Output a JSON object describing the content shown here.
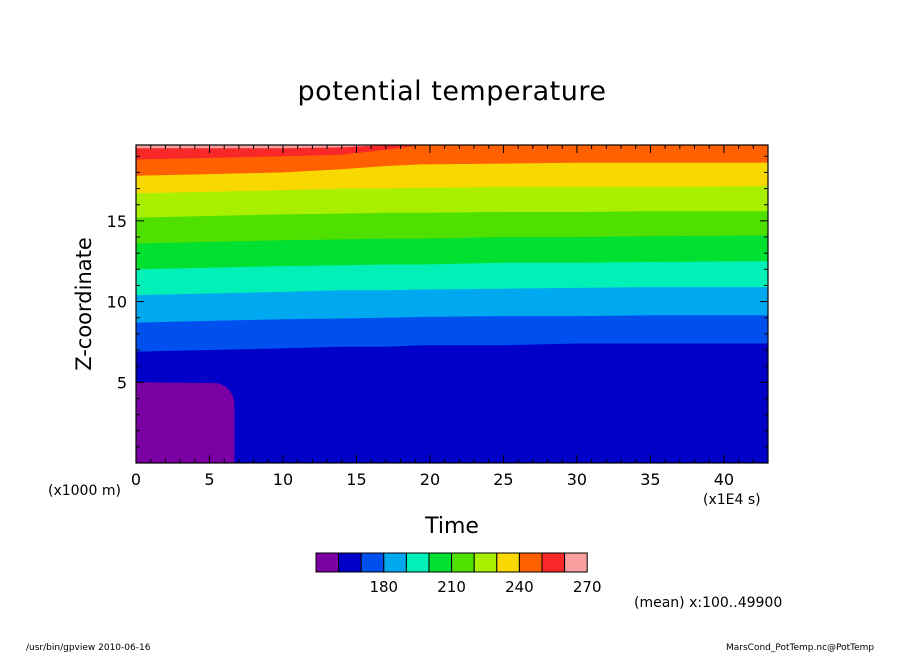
{
  "chart_data": {
    "type": "heatmap",
    "title": "potential temperature",
    "xlabel": "Time",
    "ylabel": "Z-coordinate",
    "x_units": "(x1E4 s)",
    "y_units": "(x1000 m)",
    "xlim": [
      0,
      43
    ],
    "ylim": [
      0,
      19.7
    ],
    "x_ticks": [
      0,
      5,
      10,
      15,
      20,
      25,
      30,
      35,
      40
    ],
    "y_ticks": [
      5,
      10,
      15
    ],
    "contour_levels": [
      160,
      170,
      180,
      190,
      200,
      210,
      220,
      230,
      240,
      250,
      260,
      270
    ],
    "colorbar_labels": [
      180,
      210,
      240,
      270
    ],
    "band_colors": [
      "#7a00a4",
      "#0000c8",
      "#0050f0",
      "#00a8f0",
      "#00f0b8",
      "#00e030",
      "#50e000",
      "#a8f000",
      "#f8d800",
      "#ff6000",
      "#f82828",
      "#f8a0a0"
    ],
    "boundary_x": [
      0,
      5,
      10,
      14,
      17,
      19.5,
      25,
      30,
      35,
      43
    ],
    "boundaries_z": [
      [
        5.0,
        5.0,
        null,
        null,
        null,
        null,
        null,
        null,
        null,
        null
      ],
      [
        6.9,
        7.0,
        7.1,
        7.2,
        7.2,
        7.3,
        7.3,
        7.4,
        7.4,
        7.4
      ],
      [
        8.7,
        8.8,
        8.9,
        8.95,
        9.0,
        9.05,
        9.1,
        9.1,
        9.15,
        9.15
      ],
      [
        10.4,
        10.5,
        10.6,
        10.7,
        10.7,
        10.75,
        10.8,
        10.85,
        10.9,
        10.9
      ],
      [
        12.0,
        12.1,
        12.2,
        12.25,
        12.3,
        12.3,
        12.4,
        12.4,
        12.45,
        12.5
      ],
      [
        13.6,
        13.7,
        13.8,
        13.85,
        13.9,
        13.9,
        14.0,
        14.0,
        14.05,
        14.1
      ],
      [
        15.2,
        15.3,
        15.4,
        15.45,
        15.5,
        15.5,
        15.55,
        15.55,
        15.6,
        15.6
      ],
      [
        16.7,
        16.8,
        16.9,
        17.0,
        17.0,
        17.05,
        17.1,
        17.1,
        17.1,
        17.15
      ],
      [
        17.8,
        17.9,
        18.0,
        18.2,
        18.4,
        18.5,
        18.55,
        18.6,
        18.6,
        18.6
      ],
      [
        18.8,
        18.9,
        19.0,
        19.1,
        19.4,
        19.7,
        19.7,
        19.7,
        19.7,
        19.7
      ],
      [
        19.5,
        19.5,
        19.5,
        19.55,
        19.7,
        19.7,
        19.7,
        19.7,
        19.7,
        19.7
      ]
    ],
    "purple_region": {
      "x_max": 6.7,
      "z_max": 5.0
    }
  },
  "annotations": {
    "mean_note": "(mean) x:100..49900",
    "footer_left": "/usr/bin/gpview   2010-06-16",
    "footer_right": "MarsCond_PotTemp.nc@PotTemp"
  }
}
